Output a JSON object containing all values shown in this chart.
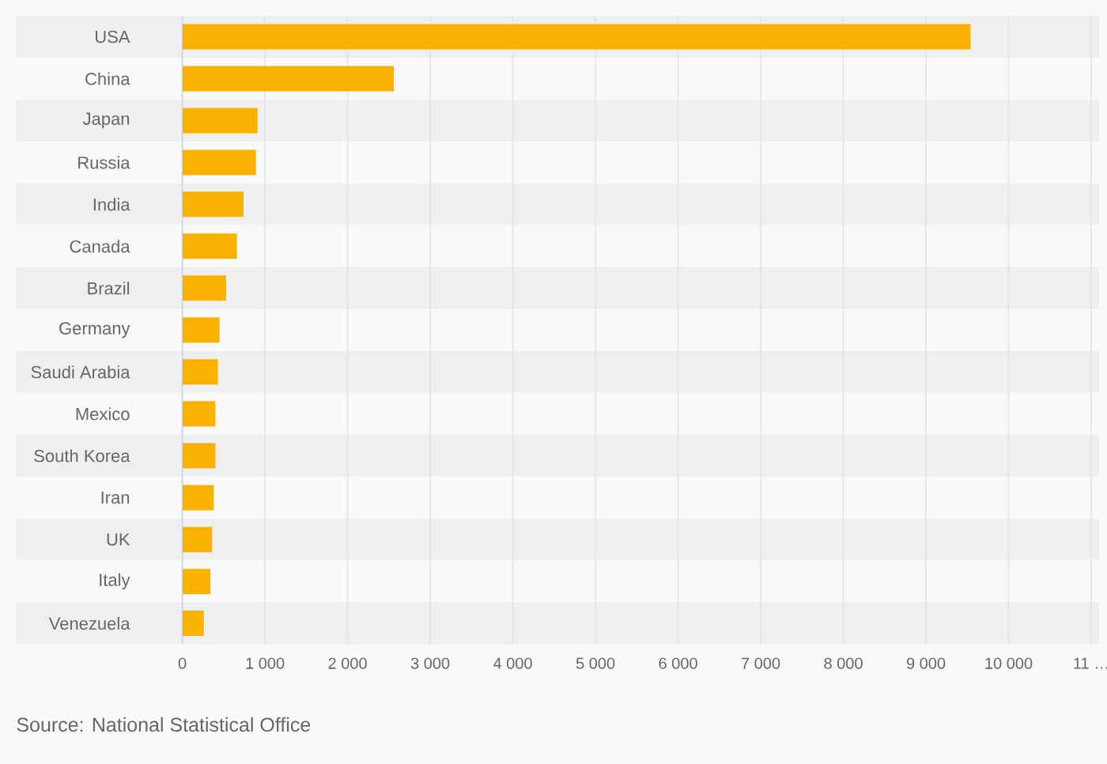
{
  "chart_data": {
    "type": "bar",
    "orientation": "horizontal",
    "categories": [
      "USA",
      "China",
      "Japan",
      "Russia",
      "India",
      "Canada",
      "Brazil",
      "Germany",
      "Saudi Arabia",
      "Mexico",
      "South Korea",
      "Iran",
      "UK",
      "Italy",
      "Venezuela"
    ],
    "values": [
      9540,
      2560,
      910,
      890,
      740,
      660,
      530,
      450,
      430,
      400,
      400,
      380,
      360,
      340,
      260
    ],
    "color": "#fbb100",
    "xlim": [
      0,
      11000
    ],
    "xticks": [
      0,
      {
        "value": 1000,
        "label": "1 000"
      },
      {
        "value": 2000,
        "label": "2 000"
      },
      {
        "value": 3000,
        "label": "3 000"
      },
      {
        "value": 4000,
        "label": "4 000"
      },
      {
        "value": 5000,
        "label": "5 000"
      },
      {
        "value": 6000,
        "label": "6 000"
      },
      {
        "value": 7000,
        "label": "7 000"
      },
      {
        "value": 8000,
        "label": "8 000"
      },
      {
        "value": 9000,
        "label": "9 000"
      },
      {
        "value": 10000,
        "label": "10 000"
      },
      {
        "value": 11000,
        "label": "11 …"
      }
    ],
    "grid": "x",
    "annotations": [
      "Source: National Statistical Office"
    ]
  }
}
